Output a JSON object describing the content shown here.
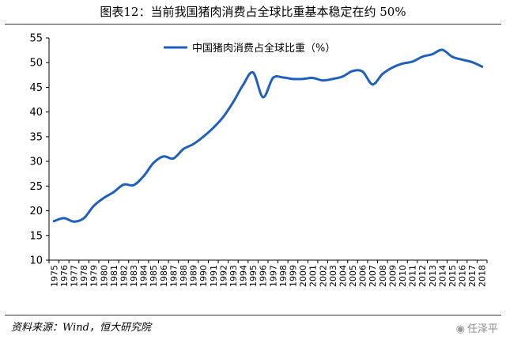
{
  "title": "图表12：当前我国猪肉消费占全球比重基本稳定在约 50%",
  "source": "资料来源：Wind，恒大研究院",
  "watermark": "任泽平",
  "chart_data": {
    "type": "line",
    "title": "图表12：当前我国猪肉消费占全球比重基本稳定在约 50%",
    "xlabel": "",
    "ylabel": "",
    "ylim": [
      10,
      55
    ],
    "yticks": [
      10,
      15,
      20,
      25,
      30,
      35,
      40,
      45,
      50,
      55
    ],
    "grid": false,
    "legend_position": "top",
    "categories": [
      "1975",
      "1976",
      "1977",
      "1978",
      "1979",
      "1980",
      "1981",
      "1982",
      "1983",
      "1984",
      "1985",
      "1986",
      "1987",
      "1988",
      "1989",
      "1990",
      "1991",
      "1992",
      "1993",
      "1994",
      "1995",
      "1996",
      "1997",
      "1998",
      "1999",
      "2000",
      "2001",
      "2002",
      "2003",
      "2004",
      "2005",
      "2006",
      "2007",
      "2008",
      "2009",
      "2010",
      "2011",
      "2012",
      "2013",
      "2014",
      "2015",
      "2016",
      "2017",
      "2018"
    ],
    "series": [
      {
        "name": "中国猪肉消费占全球比重（%）",
        "color": "#1f5fbf",
        "values": [
          17.9,
          18.5,
          17.8,
          18.5,
          21.0,
          22.6,
          23.8,
          25.3,
          25.2,
          27.0,
          29.7,
          31.0,
          30.6,
          32.5,
          33.5,
          35.0,
          36.8,
          39.0,
          42.0,
          45.5,
          48.0,
          43.0,
          46.9,
          47.0,
          46.7,
          46.7,
          46.9,
          46.4,
          46.7,
          47.2,
          48.3,
          48.2,
          45.6,
          47.7,
          49.0,
          49.8,
          50.2,
          51.2,
          51.7,
          52.6,
          51.2,
          50.6,
          50.1,
          49.2
        ]
      }
    ]
  }
}
